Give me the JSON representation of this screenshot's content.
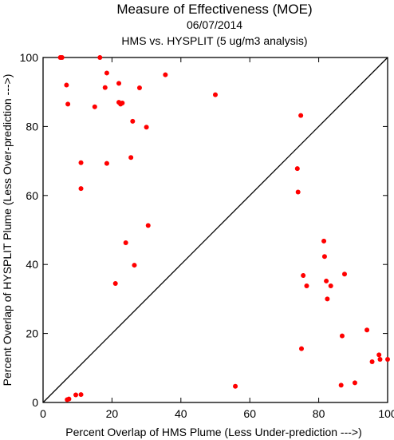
{
  "chart_data": {
    "type": "scatter",
    "title": "Measure of Effectiveness (MOE)",
    "subtitle": "06/07/2014",
    "subtitle2": "HMS vs. HYSPLIT  (5 ug/m3 analysis)",
    "xlabel": "Percent Overlap of HMS Plume (Less Under-prediction --->)",
    "ylabel": "Percent Overlap of HYSPLIT Plume (Less Over-prediction --->)",
    "xlim": [
      0,
      100
    ],
    "ylim": [
      0,
      100
    ],
    "x_ticks": [
      0,
      20,
      40,
      60,
      80,
      100
    ],
    "y_ticks": [
      0,
      20,
      40,
      60,
      80,
      100
    ],
    "grid": false,
    "diagonal_line": true,
    "point_color": "#ff0000",
    "points": [
      {
        "x": 5.0,
        "y": 100.0
      },
      {
        "x": 5.5,
        "y": 100.0
      },
      {
        "x": 16.5,
        "y": 100.0
      },
      {
        "x": 6.8,
        "y": 92.0
      },
      {
        "x": 7.2,
        "y": 86.5
      },
      {
        "x": 18.5,
        "y": 95.5
      },
      {
        "x": 18.0,
        "y": 91.3
      },
      {
        "x": 22.0,
        "y": 92.5
      },
      {
        "x": 28.0,
        "y": 91.2
      },
      {
        "x": 35.5,
        "y": 95.0
      },
      {
        "x": 15.0,
        "y": 85.7
      },
      {
        "x": 22.0,
        "y": 87.0
      },
      {
        "x": 22.5,
        "y": 86.5
      },
      {
        "x": 23.0,
        "y": 86.8
      },
      {
        "x": 26.0,
        "y": 81.5
      },
      {
        "x": 30.0,
        "y": 79.8
      },
      {
        "x": 50.0,
        "y": 89.2
      },
      {
        "x": 74.8,
        "y": 83.2
      },
      {
        "x": 11.0,
        "y": 69.5
      },
      {
        "x": 18.5,
        "y": 69.3
      },
      {
        "x": 25.5,
        "y": 71.0
      },
      {
        "x": 11.0,
        "y": 62.0
      },
      {
        "x": 73.8,
        "y": 67.8
      },
      {
        "x": 74.0,
        "y": 61.0
      },
      {
        "x": 30.5,
        "y": 51.3
      },
      {
        "x": 24.0,
        "y": 46.3
      },
      {
        "x": 26.5,
        "y": 39.8
      },
      {
        "x": 21.0,
        "y": 34.5
      },
      {
        "x": 81.5,
        "y": 46.8
      },
      {
        "x": 81.7,
        "y": 42.3
      },
      {
        "x": 75.5,
        "y": 36.8
      },
      {
        "x": 76.5,
        "y": 33.8
      },
      {
        "x": 82.2,
        "y": 35.2
      },
      {
        "x": 83.5,
        "y": 33.8
      },
      {
        "x": 87.5,
        "y": 37.2
      },
      {
        "x": 82.5,
        "y": 30.0
      },
      {
        "x": 86.8,
        "y": 19.3
      },
      {
        "x": 94.0,
        "y": 21.0
      },
      {
        "x": 75.0,
        "y": 15.6
      },
      {
        "x": 97.5,
        "y": 13.8
      },
      {
        "x": 95.5,
        "y": 11.8
      },
      {
        "x": 97.8,
        "y": 12.5
      },
      {
        "x": 100.0,
        "y": 12.5
      },
      {
        "x": 86.5,
        "y": 5.0
      },
      {
        "x": 90.5,
        "y": 5.7
      },
      {
        "x": 55.8,
        "y": 4.7
      },
      {
        "x": 7.0,
        "y": 0.8
      },
      {
        "x": 7.5,
        "y": 1.0
      },
      {
        "x": 9.5,
        "y": 2.2
      },
      {
        "x": 11.0,
        "y": 2.3
      }
    ]
  }
}
